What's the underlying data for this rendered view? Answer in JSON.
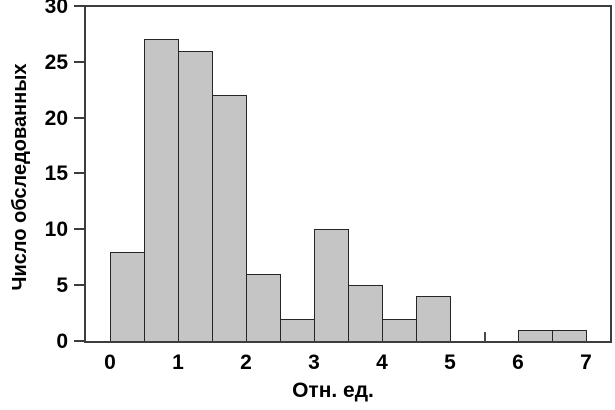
{
  "chart_data": {
    "type": "bar",
    "subtype": "histogram",
    "title": "",
    "xlabel": "Отн. ед.",
    "ylabel": "Число обследованных",
    "bin_width": 0.5,
    "bins": [
      {
        "x0": 0.0,
        "x1": 0.5,
        "count": 8
      },
      {
        "x0": 0.5,
        "x1": 1.0,
        "count": 27
      },
      {
        "x0": 1.0,
        "x1": 1.5,
        "count": 26
      },
      {
        "x0": 1.5,
        "x1": 2.0,
        "count": 22
      },
      {
        "x0": 2.0,
        "x1": 2.5,
        "count": 6
      },
      {
        "x0": 2.5,
        "x1": 3.0,
        "count": 2
      },
      {
        "x0": 3.0,
        "x1": 3.5,
        "count": 10
      },
      {
        "x0": 3.5,
        "x1": 4.0,
        "count": 5
      },
      {
        "x0": 4.0,
        "x1": 4.5,
        "count": 2
      },
      {
        "x0": 4.5,
        "x1": 5.0,
        "count": 4
      },
      {
        "x0": 5.0,
        "x1": 5.5,
        "count": 0
      },
      {
        "x0": 5.5,
        "x1": 6.0,
        "count": 0
      },
      {
        "x0": 6.0,
        "x1": 6.5,
        "count": 1
      },
      {
        "x0": 6.5,
        "x1": 7.0,
        "count": 1
      }
    ],
    "x_ticks": [
      0,
      1,
      2,
      3,
      4,
      5,
      6,
      7
    ],
    "y_ticks": [
      0,
      5,
      10,
      15,
      20,
      25,
      30
    ],
    "xlim": [
      -0.37,
      7.38
    ],
    "ylim": [
      0,
      30
    ],
    "grid": false,
    "legend": null,
    "plot_frame": "closed-box",
    "bar_fill": "#c5c5c5",
    "bar_border": "#262626",
    "axis_color": "#3d3d3d",
    "text_color": "#000000",
    "background": "#ffffff",
    "axis_artifact_x": 5.5
  }
}
